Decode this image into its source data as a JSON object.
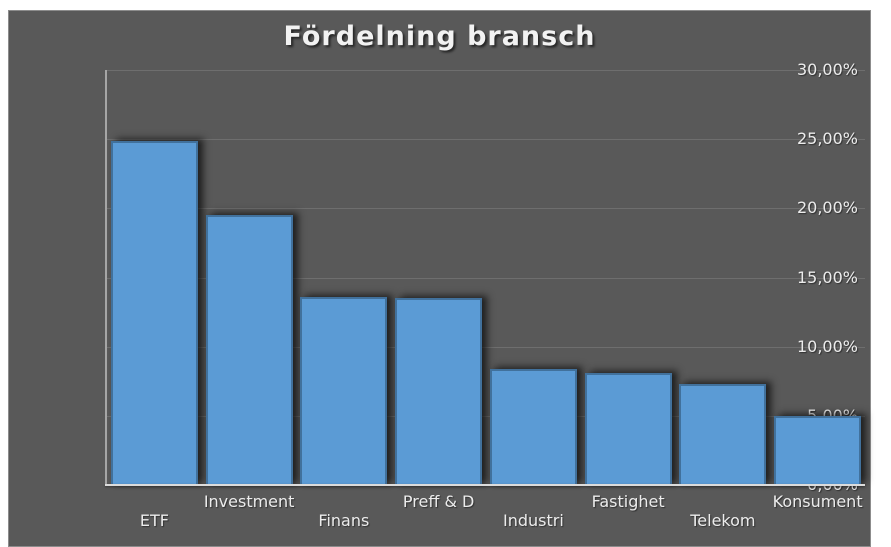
{
  "chart_data": {
    "type": "bar",
    "title": "Fördelning bransch",
    "categories": [
      "ETF",
      "Investment",
      "Finans",
      "Preff & D",
      "Industri",
      "Fastighet",
      "Telekom",
      "Konsument"
    ],
    "values": [
      24.9,
      19.5,
      13.6,
      13.5,
      8.4,
      8.1,
      7.3,
      5.0
    ],
    "xlabel": "",
    "ylabel": "",
    "ylim": [
      0,
      30
    ],
    "y_step": 5,
    "y_tick_labels": [
      "30,00%",
      "25,00%",
      "20,00%",
      "15,00%",
      "10,00%",
      "5,00%",
      "0,00%"
    ],
    "grid": "horizontal",
    "legend": "none",
    "x_label_layout": "staggered-two-rows",
    "colors": {
      "panel_background": "#595959",
      "page_background": "#ffffff",
      "bar_fill": "#5b9bd5",
      "bar_border": "#41719c",
      "gridline": "#6e6e6e",
      "y_axis_line": "#a6a6a6",
      "x_axis_line": "#dcdcdc",
      "title_text": "#f2f2f2",
      "label_text": "#ececec"
    }
  }
}
